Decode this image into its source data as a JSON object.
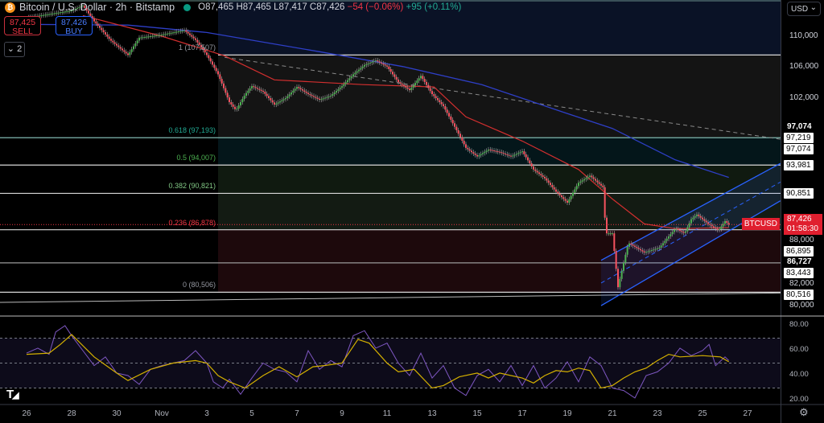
{
  "header": {
    "title": "Bitcoin / U.S. Dollar · 2h · Bitstamp",
    "coin_icon": "bitcoin-icon",
    "market_status": "open",
    "open": "O87,465",
    "high": "H87,465",
    "low": "L87,417",
    "close": "C87,426",
    "change": "−54 (−0.06%)",
    "change2": "+95 (+0.11%)"
  },
  "trade": {
    "sell_price": "87,425",
    "sell_label": "SELL",
    "buy_price": "87,426",
    "buy_label": "BUY",
    "indicators_count": "2"
  },
  "currency": "USD",
  "colors": {
    "up": "#4caf50",
    "down": "#f7525f",
    "ma_fast": "#d32f2f",
    "ma_slow": "#2e3fc7",
    "channel": "#2962ff",
    "rsi": "#7e57c2",
    "rsi_ma": "#d4b000"
  },
  "chart_data": {
    "type": "candlestick",
    "symbol": "BTCUSD",
    "interval": "2h",
    "scale": "log",
    "price_axis_ticks": [
      "110,000",
      "106,000",
      "102,000",
      "88,000",
      "82,000",
      "80,000"
    ],
    "price_axis_tick_values": [
      110000,
      106000,
      102000,
      88000,
      82000,
      80000
    ],
    "date_ticks": [
      {
        "label": "26",
        "t": "10-26 00"
      },
      {
        "label": "28",
        "t": "10-28 00"
      },
      {
        "label": "30",
        "t": "10-30 00"
      },
      {
        "label": "Nov",
        "t": "11-01 00"
      },
      {
        "label": "3",
        "t": "11-03 00"
      },
      {
        "label": "5",
        "t": "11-05 00"
      },
      {
        "label": "7",
        "t": "11-07 00"
      },
      {
        "label": "9",
        "t": "11-09 00"
      },
      {
        "label": "11",
        "t": "11-11 00"
      },
      {
        "label": "13",
        "t": "11-13 00"
      },
      {
        "label": "15",
        "t": "11-15 00"
      },
      {
        "label": "17",
        "t": "11-17 00"
      },
      {
        "label": "19",
        "t": "11-19 00"
      },
      {
        "label": "21",
        "t": "11-21 00"
      },
      {
        "label": "23",
        "t": "11-23 00"
      },
      {
        "label": "25",
        "t": "11-25 00"
      },
      {
        "label": "27",
        "t": "11-27 00"
      }
    ],
    "price_path": [
      [
        "10-26 00",
        112500
      ],
      [
        "10-27 00",
        113000
      ],
      [
        "10-28 00",
        113500
      ],
      [
        "10-28 12",
        114200
      ],
      [
        "10-29 00",
        112000
      ],
      [
        "10-29 17",
        109500
      ],
      [
        "10-30 12",
        107500
      ],
      [
        "10-31 00",
        109800
      ],
      [
        "11-01 00",
        110200
      ],
      [
        "11-02 00",
        110800
      ],
      [
        "11-02 12",
        109500
      ],
      [
        "11-03 00",
        107500
      ],
      [
        "11-03 12",
        105000
      ],
      [
        "11-04 00",
        101500
      ],
      [
        "11-04 07",
        100500
      ],
      [
        "11-04 17",
        102500
      ],
      [
        "11-05 00",
        103500
      ],
      [
        "11-05 12",
        102800
      ],
      [
        "11-06 00",
        101200
      ],
      [
        "11-06 12",
        102000
      ],
      [
        "11-07 00",
        103400
      ],
      [
        "11-07 12",
        102500
      ],
      [
        "11-08 00",
        101800
      ],
      [
        "11-08 12",
        102300
      ],
      [
        "11-09 00",
        103500
      ],
      [
        "11-09 12",
        105000
      ],
      [
        "11-10 00",
        106200
      ],
      [
        "11-10 12",
        106800
      ],
      [
        "11-11 00",
        106000
      ],
      [
        "11-11 12",
        104000
      ],
      [
        "11-12 00",
        103000
      ],
      [
        "11-12 12",
        104800
      ],
      [
        "11-13 00",
        102500
      ],
      [
        "11-13 12",
        101000
      ],
      [
        "11-14 00",
        98500
      ],
      [
        "11-14 12",
        96000
      ],
      [
        "11-15 00",
        95000
      ],
      [
        "11-15 12",
        95800
      ],
      [
        "11-16 00",
        95500
      ],
      [
        "11-16 12",
        95000
      ],
      [
        "11-17 00",
        95600
      ],
      [
        "11-17 12",
        93500
      ],
      [
        "11-18 00",
        92500
      ],
      [
        "11-18 12",
        91000
      ],
      [
        "11-19 00",
        89800
      ],
      [
        "11-19 12",
        92000
      ],
      [
        "11-20 00",
        92800
      ],
      [
        "11-20 14",
        91500
      ],
      [
        "11-20 17",
        86500
      ],
      [
        "11-21 00",
        86500
      ],
      [
        "11-21 06",
        81000
      ],
      [
        "11-21 17",
        85500
      ],
      [
        "11-22 10",
        84500
      ],
      [
        "11-23 02",
        85000
      ],
      [
        "11-23 19",
        87000
      ],
      [
        "11-24 05",
        86500
      ],
      [
        "11-24 12",
        88000
      ],
      [
        "11-24 18",
        88500
      ],
      [
        "11-25 06",
        87500
      ],
      [
        "11-25 17",
        86800
      ],
      [
        "11-26 00",
        87800
      ],
      [
        "11-26 04",
        87426
      ]
    ],
    "ma_fast": [
      [
        "10-28 12",
        112800
      ],
      [
        "11-01 00",
        110000
      ],
      [
        "11-03 19",
        107400
      ],
      [
        "11-06 00",
        104300
      ],
      [
        "11-09 22",
        103700
      ],
      [
        "11-13 02",
        103400
      ],
      [
        "11-14 12",
        99700
      ],
      [
        "11-17 00",
        96800
      ],
      [
        "11-19 12",
        93500
      ],
      [
        "11-21 00",
        90200
      ],
      [
        "11-22 10",
        87500
      ],
      [
        "11-23 19",
        87000
      ],
      [
        "11-26 04",
        87100
      ]
    ],
    "ma_slow": [
      [
        "10-26 00",
        111600
      ],
      [
        "10-30 12",
        111500
      ],
      [
        "11-03 00",
        110500
      ],
      [
        "11-08 02",
        107900
      ],
      [
        "11-11 17",
        106000
      ],
      [
        "11-15 05",
        103700
      ],
      [
        "11-18 19",
        100300
      ],
      [
        "11-21 00",
        98300
      ],
      [
        "11-23 19",
        94600
      ],
      [
        "11-26 04",
        92600
      ]
    ],
    "trendline": [
      [
        "11-03 19",
        107200
      ],
      [
        "11-28 12",
        97000
      ]
    ],
    "channel": {
      "upper": [
        [
          "11-20 12",
          83700
        ],
        [
          "11-28 11",
          94200
        ]
      ],
      "lower": [
        [
          "11-20 12",
          79200
        ],
        [
          "11-28 11",
          90000
        ]
      ]
    },
    "fib_levels": [
      {
        "label": "1 (107,507)",
        "ratio": 1,
        "price": 107507,
        "color": "#9598a1"
      },
      {
        "label": "0.618 (97,193)",
        "ratio": 0.618,
        "price": 97193,
        "color": "#22ab94"
      },
      {
        "label": "0.5 (94,007)",
        "ratio": 0.5,
        "price": 94007,
        "color": "#4caf50"
      },
      {
        "label": "0.382 (90,821)",
        "ratio": 0.382,
        "price": 90821,
        "color": "#81c784"
      },
      {
        "label": "0.236 (86,878)",
        "ratio": 0.236,
        "price": 86878,
        "color": "#f23645"
      },
      {
        "label": "0 (80,506)",
        "ratio": 0,
        "price": 80506,
        "color": "#9598a1"
      }
    ],
    "fib_start": "11-03 12",
    "extra_level": 83443,
    "axis_labels_boxed": [
      {
        "text": "97,219",
        "price": 97219
      },
      {
        "text": "97,074",
        "price": 96400
      },
      {
        "text": "93,981",
        "price": 93981
      },
      {
        "text": "90,851",
        "price": 90851
      },
      {
        "text": "86,895",
        "price": 86100
      },
      {
        "text": "83,443",
        "price": 83443
      },
      {
        "text": "80,516",
        "price": 80516
      }
    ],
    "axis_labels_plain": [
      {
        "text": "97,074",
        "price": 97800
      },
      {
        "text": "86,727",
        "price": 85100
      }
    ],
    "last_price": {
      "symbol": "BTCUSD",
      "price": "87,426",
      "countdown": "01:58:30",
      "value": 87426
    },
    "rsi": {
      "levels": [
        70,
        50,
        30
      ],
      "ticks": [
        "80.00",
        "60.00",
        "40.00",
        "20.00"
      ],
      "tick_values": [
        80,
        60,
        40,
        20
      ],
      "values": [
        [
          "10-26 00",
          58
        ],
        [
          "10-26 12",
          62
        ],
        [
          "10-27 00",
          57
        ],
        [
          "10-27 07",
          75
        ],
        [
          "10-27 17",
          80
        ],
        [
          "10-28 00",
          72
        ],
        [
          "10-28 12",
          60
        ],
        [
          "10-29 00",
          48
        ],
        [
          "10-29 12",
          55
        ],
        [
          "10-30 00",
          42
        ],
        [
          "10-30 12",
          40
        ],
        [
          "10-31 00",
          33
        ],
        [
          "10-31 12",
          45
        ],
        [
          "11-01 00",
          48
        ],
        [
          "11-01 12",
          50
        ],
        [
          "11-02 00",
          52
        ],
        [
          "11-02 12",
          60
        ],
        [
          "11-03 00",
          50
        ],
        [
          "11-03 07",
          35
        ],
        [
          "11-03 17",
          30
        ],
        [
          "11-04 00",
          37
        ],
        [
          "11-04 12",
          25
        ],
        [
          "11-05 00",
          38
        ],
        [
          "11-05 12",
          50
        ],
        [
          "11-06 00",
          45
        ],
        [
          "11-06 12",
          43
        ],
        [
          "11-07 00",
          35
        ],
        [
          "11-07 12",
          60
        ],
        [
          "11-08 00",
          45
        ],
        [
          "11-08 12",
          52
        ],
        [
          "11-09 00",
          47
        ],
        [
          "11-09 12",
          72
        ],
        [
          "11-10 00",
          76
        ],
        [
          "11-10 12",
          62
        ],
        [
          "11-11 00",
          66
        ],
        [
          "11-11 12",
          50
        ],
        [
          "11-12 00",
          40
        ],
        [
          "11-12 12",
          58
        ],
        [
          "11-13 00",
          38
        ],
        [
          "11-13 12",
          48
        ],
        [
          "11-14 00",
          30
        ],
        [
          "11-14 12",
          24
        ],
        [
          "11-15 00",
          40
        ],
        [
          "11-15 12",
          45
        ],
        [
          "11-16 00",
          35
        ],
        [
          "11-16 12",
          48
        ],
        [
          "11-17 00",
          32
        ],
        [
          "11-17 12",
          48
        ],
        [
          "11-18 00",
          30
        ],
        [
          "11-18 12",
          38
        ],
        [
          "11-19 00",
          51
        ],
        [
          "11-19 12",
          35
        ],
        [
          "11-20 00",
          55
        ],
        [
          "11-20 12",
          48
        ],
        [
          "11-21 00",
          30
        ],
        [
          "11-21 12",
          28
        ],
        [
          "11-22 00",
          22
        ],
        [
          "11-22 12",
          40
        ],
        [
          "11-23 00",
          43
        ],
        [
          "11-23 12",
          50
        ],
        [
          "11-24 00",
          62
        ],
        [
          "11-24 12",
          56
        ],
        [
          "11-25 00",
          60
        ],
        [
          "11-25 07",
          65
        ],
        [
          "11-25 14",
          48
        ],
        [
          "11-26 00",
          55
        ],
        [
          "11-26 04",
          52
        ]
      ],
      "ma": [
        [
          "10-26 00",
          57
        ],
        [
          "10-27 00",
          58
        ],
        [
          "10-27 12",
          65
        ],
        [
          "10-28 00",
          73
        ],
        [
          "10-29 00",
          55
        ],
        [
          "10-30 00",
          42
        ],
        [
          "10-30 12",
          36
        ],
        [
          "10-31 12",
          45
        ],
        [
          "11-01 12",
          50
        ],
        [
          "11-02 12",
          52
        ],
        [
          "11-03 00",
          50
        ],
        [
          "11-03 12",
          40
        ],
        [
          "11-04 00",
          35
        ],
        [
          "11-04 17",
          30
        ],
        [
          "11-05 12",
          40
        ],
        [
          "11-06 05",
          47
        ],
        [
          "11-07 00",
          39
        ],
        [
          "11-07 17",
          47
        ],
        [
          "11-08 05",
          48
        ],
        [
          "11-09 00",
          50
        ],
        [
          "11-09 17",
          69
        ],
        [
          "11-10 05",
          66
        ],
        [
          "11-11 00",
          50
        ],
        [
          "11-11 12",
          43
        ],
        [
          "11-12 05",
          45
        ],
        [
          "11-13 00",
          30
        ],
        [
          "11-13 12",
          32
        ],
        [
          "11-14 05",
          39
        ],
        [
          "11-15 00",
          42
        ],
        [
          "11-15 12",
          38
        ],
        [
          "11-16 00",
          42
        ],
        [
          "11-17 00",
          38
        ],
        [
          "11-17 12",
          34
        ],
        [
          "11-18 00",
          40
        ],
        [
          "11-18 12",
          44
        ],
        [
          "11-19 00",
          43
        ],
        [
          "11-19 12",
          46
        ],
        [
          "11-20 00",
          44
        ],
        [
          "11-20 12",
          30
        ],
        [
          "11-21 00",
          32
        ],
        [
          "11-21 12",
          38
        ],
        [
          "11-22 00",
          43
        ],
        [
          "11-22 12",
          46
        ],
        [
          "11-23 00",
          52
        ],
        [
          "11-23 12",
          57
        ],
        [
          "11-24 00",
          55
        ],
        [
          "11-25 00",
          56
        ],
        [
          "11-25 19",
          55
        ],
        [
          "11-26 04",
          51
        ]
      ]
    }
  }
}
